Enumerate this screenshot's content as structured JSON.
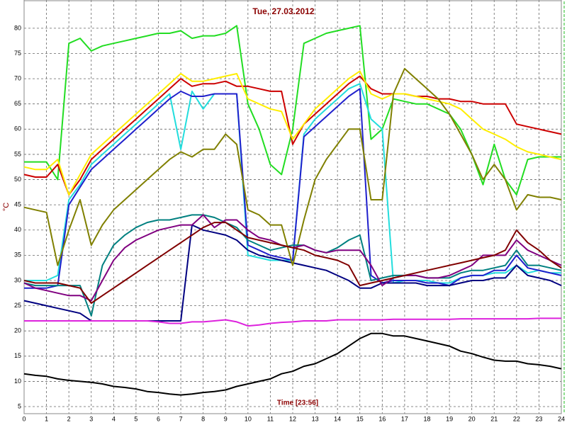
{
  "chart_data": {
    "type": "line",
    "title": "Tue, 27.03.2012",
    "x_label": "Time [23:56]",
    "y_label": "°C",
    "xlim": [
      0,
      24
    ],
    "ylim": [
      3.6,
      85.6
    ],
    "xticks": [
      0,
      1,
      2,
      3,
      4,
      5,
      6,
      7,
      8,
      9,
      10,
      11,
      12,
      13,
      14,
      15,
      16,
      17,
      18,
      19,
      20,
      21,
      22,
      23,
      24
    ],
    "yticks": [
      5,
      10,
      15,
      20,
      25,
      30,
      35,
      40,
      45,
      50,
      55,
      60,
      65,
      70,
      75,
      80
    ],
    "grid": true,
    "x": [
      0,
      0.5,
      1,
      1.5,
      2,
      2.5,
      3,
      3.5,
      4,
      4.5,
      5,
      5.5,
      6,
      6.5,
      7,
      7.5,
      8,
      8.5,
      9,
      9.5,
      10,
      10.5,
      11,
      11.5,
      12,
      12.5,
      13,
      13.5,
      14,
      14.5,
      15,
      15.5,
      16,
      16.5,
      17,
      17.5,
      18,
      18.5,
      19,
      19.5,
      20,
      20.5,
      21,
      21.5,
      22,
      22.5,
      23,
      23.5,
      24
    ],
    "series": [
      {
        "color": "#22dd22",
        "values": [
          53.5,
          53.5,
          53.5,
          50,
          77,
          78,
          75.5,
          76.5,
          77,
          77.5,
          78,
          78.5,
          79,
          79,
          79.5,
          78,
          78.5,
          78.5,
          79,
          80.5,
          65,
          60,
          53,
          51,
          60,
          77,
          78,
          79,
          79.5,
          80,
          80.5,
          58,
          60,
          66,
          65.5,
          65,
          65,
          64,
          63,
          60,
          55,
          49,
          57,
          50,
          47,
          54,
          54.5,
          54.5,
          54.5
        ]
      },
      {
        "color": "#cc0000",
        "values": [
          51,
          50.5,
          50.5,
          53,
          47,
          50,
          54,
          56,
          58,
          60,
          62,
          64,
          66,
          68,
          70,
          68.5,
          69,
          69,
          69.5,
          68.5,
          68.5,
          68,
          67.5,
          67.5,
          57,
          61,
          63,
          65,
          67,
          69,
          70.5,
          68,
          67,
          67,
          67,
          66.5,
          66.5,
          66,
          66,
          65.5,
          65.5,
          65,
          65,
          65,
          61,
          60.5,
          60,
          59.5,
          59
        ]
      },
      {
        "color": "#ffee00",
        "values": [
          52.5,
          52,
          52,
          54,
          47,
          51,
          55,
          57,
          59,
          61,
          63,
          65,
          67,
          69,
          71,
          69.5,
          69.5,
          70,
          70.5,
          71,
          66,
          65,
          64,
          63.5,
          58,
          61,
          64,
          66,
          68,
          70,
          71.5,
          67,
          66,
          67,
          67,
          66.5,
          66,
          65.5,
          65,
          64,
          62,
          60,
          59,
          58,
          56.5,
          55.5,
          55,
          54.5,
          54
        ]
      },
      {
        "color": "#22dddd",
        "values": [
          30,
          30,
          30,
          31,
          46,
          49,
          53,
          55,
          57,
          59,
          61,
          63,
          65,
          67,
          56,
          67.5,
          64,
          67,
          67,
          67,
          35,
          34.5,
          34,
          34,
          34,
          59,
          62,
          64,
          66,
          68,
          69,
          62,
          60,
          29.5,
          30,
          30,
          30,
          29.5,
          29.5,
          30.5,
          31,
          31,
          31.5,
          31.5,
          33,
          31.5,
          32,
          31.5,
          31.5
        ]
      },
      {
        "color": "#2020cc",
        "values": [
          28.5,
          28.5,
          28.5,
          29,
          45,
          48.5,
          52,
          54,
          56,
          58,
          60,
          62,
          64,
          66,
          67.5,
          66.5,
          66.5,
          67,
          67,
          67,
          37,
          36,
          35,
          34.5,
          34,
          58.5,
          60.5,
          62.5,
          64.5,
          66.5,
          68,
          31,
          29.5,
          30,
          30,
          30,
          29.5,
          29.5,
          29,
          30.5,
          31,
          31,
          32,
          32,
          35,
          32.5,
          32,
          31.5,
          31
        ]
      },
      {
        "color": "#000080",
        "values": [
          26,
          25.5,
          25,
          24.5,
          24,
          23.5,
          22,
          22,
          22,
          22,
          22,
          22,
          22,
          22,
          22,
          41,
          40,
          39.5,
          39,
          38,
          36,
          35,
          34.5,
          34,
          33.5,
          33,
          32.5,
          32,
          31,
          30,
          28.5,
          28.5,
          29.5,
          29.5,
          29.5,
          29.5,
          29,
          29,
          29,
          29.5,
          30,
          30,
          30.5,
          30.5,
          33,
          31,
          30.5,
          30,
          29
        ]
      },
      {
        "color": "#808000",
        "values": [
          44.5,
          44,
          43.5,
          33,
          40,
          46,
          37,
          41,
          44,
          46,
          48,
          50,
          52,
          54,
          55.5,
          54.5,
          56,
          56,
          59,
          57,
          44,
          43,
          41,
          41,
          33,
          42,
          50,
          54,
          57,
          60,
          60,
          46,
          46,
          67,
          72,
          70,
          68,
          66,
          63,
          59,
          55,
          50,
          53,
          50,
          44,
          47,
          46.5,
          46.5,
          46
        ]
      },
      {
        "color": "#008080",
        "values": [
          29.5,
          29,
          29,
          29,
          29,
          29,
          23,
          33,
          37,
          39,
          40.5,
          41.5,
          42,
          42,
          42.5,
          43,
          43,
          42.5,
          41.5,
          40.5,
          38,
          37,
          36,
          36.5,
          37,
          37,
          36,
          35.5,
          36.5,
          38,
          39,
          30,
          30.5,
          31,
          31,
          31,
          30.5,
          30.5,
          30.5,
          31.5,
          32,
          32,
          32.5,
          33,
          36,
          33,
          33,
          32.5,
          32
        ]
      },
      {
        "color": "#800080",
        "values": [
          29.5,
          28.5,
          28,
          27.5,
          27,
          27,
          26,
          30,
          34,
          36.5,
          38,
          39,
          40,
          40.5,
          41,
          41,
          43,
          40.5,
          42,
          42,
          40,
          38.5,
          38,
          37,
          36.5,
          37,
          36,
          35.5,
          36,
          36,
          36,
          33,
          29,
          30.5,
          31,
          31,
          30.5,
          30.5,
          31,
          32,
          33,
          35,
          35,
          35,
          38,
          36,
          35,
          34,
          33
        ]
      },
      {
        "color": "#800000",
        "values": [
          30,
          29.5,
          29.5,
          29.5,
          29,
          28.5,
          25.5,
          27,
          28.5,
          30,
          31.5,
          33,
          34.5,
          36,
          37.5,
          39,
          40.5,
          41.5,
          41.5,
          40,
          38.5,
          38,
          37.5,
          37,
          36.5,
          36,
          35,
          34.5,
          34,
          33,
          29,
          29.5,
          30,
          30.5,
          31,
          31.5,
          32,
          32.5,
          33,
          33.5,
          34,
          34.5,
          35,
          36,
          40,
          37.5,
          36,
          34,
          32.5
        ]
      },
      {
        "color": "#dd22dd",
        "values": [
          22,
          22,
          22,
          22,
          22,
          22,
          22,
          22,
          22,
          22,
          22,
          22,
          21.8,
          21.5,
          21.5,
          21.8,
          21.8,
          22,
          22.2,
          21.8,
          21,
          21.2,
          21.5,
          21.7,
          21.8,
          22,
          22,
          22,
          22.2,
          22.2,
          22.2,
          22.2,
          22.2,
          22.3,
          22.3,
          22.3,
          22.3,
          22.3,
          22.3,
          22.4,
          22.4,
          22.4,
          22.4,
          22.4,
          22.4,
          22.4,
          22.5,
          22.5,
          22.5
        ]
      },
      {
        "color": "#000000",
        "values": [
          11.5,
          11.2,
          11,
          10.5,
          10.2,
          10,
          9.8,
          9.5,
          9,
          8.8,
          8.5,
          8,
          7.8,
          7.5,
          7.3,
          7.5,
          7.8,
          8,
          8.3,
          9,
          9.5,
          10,
          10.5,
          11.5,
          12,
          13,
          13.5,
          14.5,
          15.5,
          17,
          18.5,
          19.5,
          19.5,
          19,
          19,
          18.5,
          18,
          17.5,
          17,
          16,
          15.5,
          14.8,
          14.2,
          14,
          14,
          13.5,
          13.3,
          13,
          12.5
        ]
      }
    ]
  }
}
